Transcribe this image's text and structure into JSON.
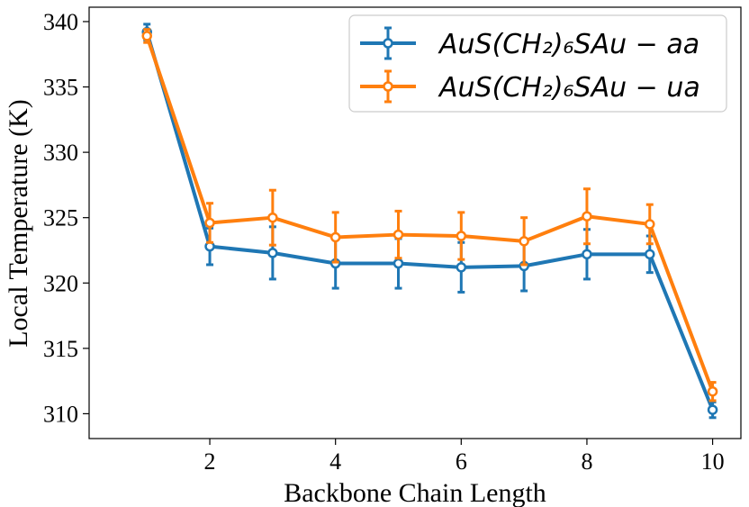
{
  "chart_data": {
    "type": "line",
    "title": "",
    "xlabel": "Backbone Chain Length",
    "ylabel": "Local Temperature (K)",
    "xlim": [
      0.08,
      10.45
    ],
    "ylim": [
      308.1,
      341.1
    ],
    "xticks": [
      2,
      4,
      6,
      8,
      10
    ],
    "yticks": [
      310,
      315,
      320,
      325,
      330,
      335,
      340
    ],
    "x": [
      1,
      2,
      3,
      4,
      5,
      6,
      7,
      8,
      9,
      10
    ],
    "grid": false,
    "legend_position": "top-right",
    "series": [
      {
        "name": "AuS(CH₂)₆SAu − aa",
        "color": "#1f77b4",
        "values": [
          339.2,
          322.8,
          322.3,
          321.5,
          321.5,
          321.2,
          321.3,
          322.2,
          322.2,
          310.3
        ],
        "errors": [
          0.6,
          1.4,
          2.0,
          1.9,
          1.9,
          1.9,
          1.9,
          1.9,
          1.4,
          0.6
        ]
      },
      {
        "name": "AuS(CH₂)₆SAu − ua",
        "color": "#ff7f0e",
        "values": [
          338.9,
          324.6,
          325.0,
          323.5,
          323.7,
          323.6,
          323.2,
          325.1,
          324.5,
          311.7
        ],
        "errors": [
          0.5,
          1.5,
          2.1,
          1.9,
          1.8,
          1.8,
          1.8,
          2.1,
          1.5,
          0.7
        ]
      }
    ]
  }
}
